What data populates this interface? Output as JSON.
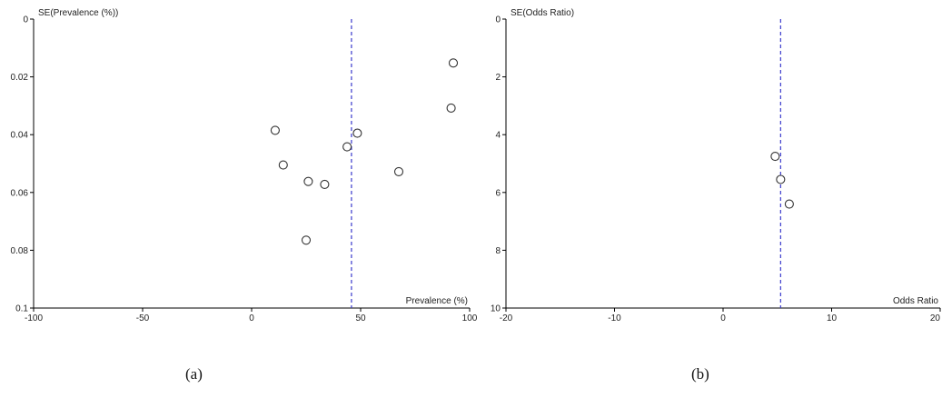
{
  "chart_data": [
    {
      "type": "scatter",
      "panel_label": "(a)",
      "xlabel": "Prevalence (%)",
      "ylabel": "SE(Prevalence (%))",
      "xlim": [
        -100,
        100
      ],
      "ylim": [
        0,
        0.1
      ],
      "y_inverted": true,
      "xticks": [
        -100,
        -50,
        0,
        50,
        100
      ],
      "xtick_labels": [
        "-100",
        "-50",
        "0",
        "50",
        "100"
      ],
      "yticks": [
        0,
        0.02,
        0.04,
        0.06,
        0.08,
        0.1
      ],
      "ytick_labels": [
        "0",
        "0.02",
        "0.04",
        "0.06",
        "0.08",
        "0.1"
      ],
      "reference_line_x": 45.8,
      "grid": false,
      "points": [
        {
          "x": 92.5,
          "y": 0.0152
        },
        {
          "x": 91.5,
          "y": 0.0308
        },
        {
          "x": 10.8,
          "y": 0.0385
        },
        {
          "x": 48.5,
          "y": 0.0395
        },
        {
          "x": 43.8,
          "y": 0.0442
        },
        {
          "x": 14.5,
          "y": 0.0505
        },
        {
          "x": 67.5,
          "y": 0.0528
        },
        {
          "x": 26.0,
          "y": 0.0562
        },
        {
          "x": 33.5,
          "y": 0.0572
        },
        {
          "x": 25.0,
          "y": 0.0765
        }
      ]
    },
    {
      "type": "scatter",
      "panel_label": "(b)",
      "xlabel": "Odds Ratio",
      "ylabel": "SE(Odds Ratio)",
      "xlim": [
        -20,
        20
      ],
      "ylim": [
        0,
        10
      ],
      "y_inverted": true,
      "xticks": [
        -20,
        -10,
        0,
        10,
        20
      ],
      "xtick_labels": [
        "-20",
        "-10",
        "0",
        "10",
        "20"
      ],
      "yticks": [
        0,
        2,
        4,
        6,
        8,
        10
      ],
      "ytick_labels": [
        "0",
        "2",
        "4",
        "6",
        "8",
        "10"
      ],
      "reference_line_x": 5.3,
      "grid": false,
      "points": [
        {
          "x": 4.8,
          "y": 4.75
        },
        {
          "x": 5.3,
          "y": 5.55
        },
        {
          "x": 6.1,
          "y": 6.4
        }
      ]
    }
  ]
}
